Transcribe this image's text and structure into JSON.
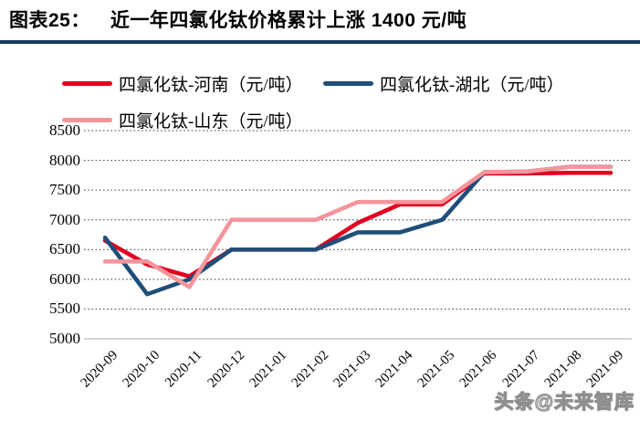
{
  "header": {
    "figure_label": "图表25：",
    "title": "近一年四氯化钛价格累计上涨 1400 元/吨"
  },
  "colors": {
    "title_rule": "#17375E",
    "henan": "#E0001F",
    "hubei": "#1F4E79",
    "shandong": "#F5959B",
    "gridline": "#3F3F3F",
    "baseline": "#C6C6C6"
  },
  "watermark": "头条@未来智库",
  "chart_data": {
    "type": "line",
    "categories": [
      "2020-09",
      "2020-10",
      "2020-11",
      "2020-12",
      "2021-01",
      "2021-02",
      "2021-03",
      "2021-04",
      "2021-05",
      "2021-06",
      "2021-07",
      "2021-08",
      "2021-09"
    ],
    "series": [
      {
        "name": "四氯化钛-河南（元/吨）",
        "color_key": "henan",
        "values": [
          6650,
          6250,
          6050,
          6500,
          6500,
          6500,
          6950,
          7260,
          7260,
          7780,
          7780,
          7790,
          7790
        ]
      },
      {
        "name": "四氯化钛-湖北（元/吨）",
        "color_key": "hubei",
        "values": [
          6700,
          5750,
          6000,
          6500,
          6500,
          6500,
          6790,
          6790,
          7000,
          7800,
          7810,
          7890,
          7890
        ]
      },
      {
        "name": "四氯化钛-山东（元/吨）",
        "color_key": "shandong",
        "values": [
          6300,
          6300,
          5870,
          7000,
          7000,
          7000,
          7300,
          7300,
          7300,
          7800,
          7810,
          7890,
          7890
        ]
      }
    ],
    "ylabel": "",
    "xlabel": "",
    "ylim": [
      5000,
      8500
    ],
    "ytick_step": 500,
    "yticks": [
      5000,
      5500,
      6000,
      6500,
      7000,
      7500,
      8000,
      8500
    ],
    "grid": "horizontal-dotted",
    "legend_position": "top"
  }
}
